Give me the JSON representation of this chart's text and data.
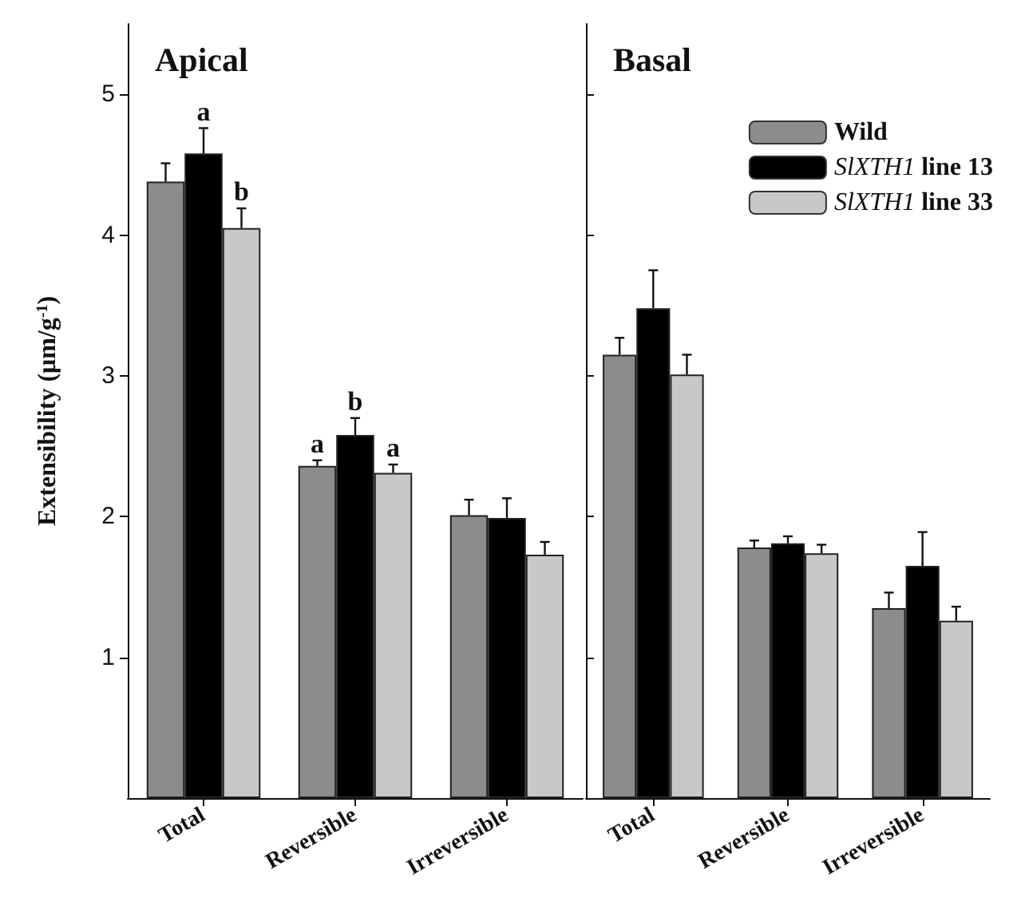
{
  "chart_data": [
    {
      "type": "bar",
      "title": "Apical",
      "ylabel": "Extensibility (μm/g$^{-1}$)",
      "categories": [
        "Total",
        "Reversible",
        "Irreversible"
      ],
      "ylim": [
        0,
        5.5
      ],
      "yticks": [
        1,
        2,
        3,
        4,
        5
      ],
      "grid": false,
      "legend": false,
      "series": [
        {
          "color": "#8c8c8c",
          "values": [
            4.38,
            2.36,
            2.01
          ],
          "errors": [
            0.13,
            0.04,
            0.11
          ],
          "value_labels": [
            null,
            "a",
            null
          ]
        },
        {
          "color": "#000000",
          "values": [
            4.58,
            2.58,
            1.99
          ],
          "errors": [
            0.18,
            0.12,
            0.14
          ],
          "value_labels": [
            "a",
            "b",
            null
          ]
        },
        {
          "color": "#c8c8c8",
          "values": [
            4.05,
            2.31,
            1.73
          ],
          "errors": [
            0.14,
            0.06,
            0.09
          ],
          "value_labels": [
            "b",
            "a",
            null
          ]
        }
      ]
    },
    {
      "type": "bar",
      "title": "Basal",
      "categories": [
        "Total",
        "Reversible",
        "Irreversible"
      ],
      "ylim": [
        0,
        5.5
      ],
      "yticks": [
        1,
        2,
        3,
        4,
        5
      ],
      "grid": false,
      "legend": "top right",
      "tick_labels": "x",
      "series": [
        {
          "name": "Wild",
          "color": "#8c8c8c",
          "values": [
            3.15,
            1.78,
            1.35
          ],
          "errors": [
            0.12,
            0.05,
            0.11
          ]
        },
        {
          "name": "SlXTH1 line 13",
          "color": "#000000",
          "values": [
            3.48,
            1.81,
            1.65
          ],
          "errors": [
            0.27,
            0.05,
            0.24
          ]
        },
        {
          "name": "SlXTH1 line 33",
          "color": "#c8c8c8",
          "values": [
            3.01,
            1.74,
            1.26
          ],
          "errors": [
            0.14,
            0.06,
            0.1
          ]
        }
      ]
    }
  ]
}
